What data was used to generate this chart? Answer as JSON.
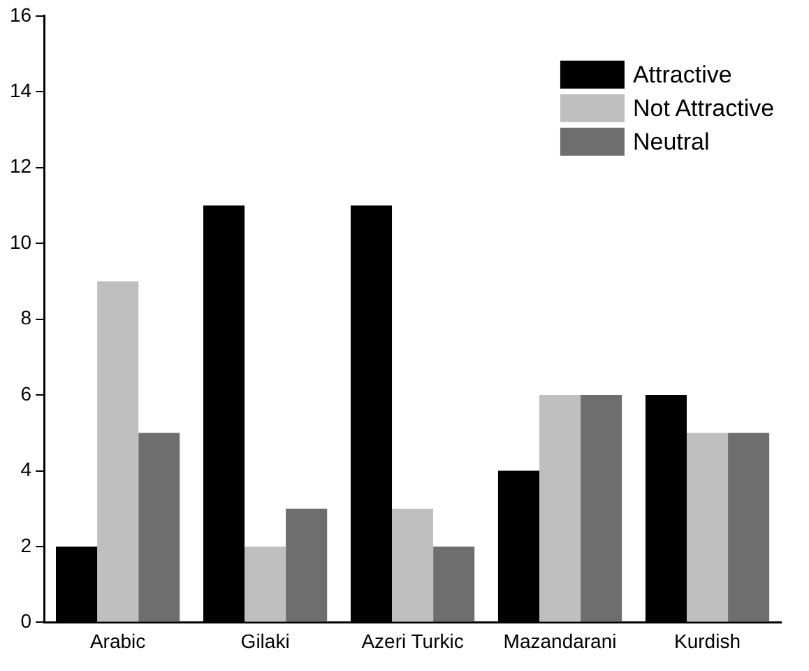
{
  "chart_data": {
    "type": "bar",
    "categories": [
      "Arabic",
      "Gilaki",
      "Azeri Turkic",
      "Mazandarani",
      "Kurdish"
    ],
    "series": [
      {
        "name": "Attractive",
        "color": "#000000",
        "values": [
          2,
          11,
          11,
          4,
          6
        ]
      },
      {
        "name": "Not Attractive",
        "color": "#bfbfbf",
        "values": [
          9,
          2,
          3,
          6,
          5
        ]
      },
      {
        "name": "Neutral",
        "color": "#6e6e6e",
        "values": [
          5,
          3,
          2,
          6,
          5
        ]
      }
    ],
    "ylim": [
      0,
      16
    ],
    "yticks": [
      0,
      2,
      4,
      6,
      8,
      10,
      12,
      14,
      16
    ],
    "grid": false,
    "legend": "top right"
  }
}
